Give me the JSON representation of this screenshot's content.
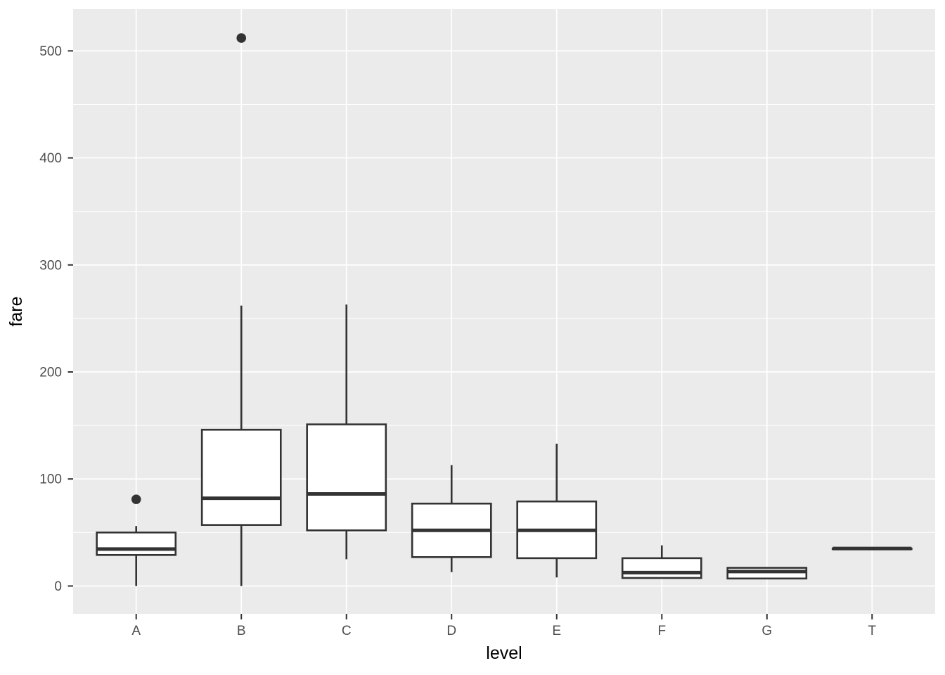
{
  "chart_data": {
    "type": "boxplot",
    "title": "",
    "xlabel": "level",
    "ylabel": "fare",
    "categories": [
      "A",
      "B",
      "C",
      "D",
      "E",
      "F",
      "G",
      "T"
    ],
    "y_ticks": [
      0,
      100,
      200,
      300,
      400,
      500
    ],
    "y_minor_ticks": [
      50,
      150,
      250,
      350,
      450
    ],
    "ylim": [
      -26,
      539
    ],
    "grid": "major-and-minor-horizontal, major-vertical-per-category",
    "legend_position": "none",
    "series": [
      {
        "category": "A",
        "whisker_low": 0,
        "q1": 29,
        "median": 34.5,
        "q3": 50,
        "whisker_high": 56,
        "outliers": [
          81
        ]
      },
      {
        "category": "B",
        "whisker_low": 0,
        "q1": 57,
        "median": 82,
        "q3": 146,
        "whisker_high": 262,
        "outliers": [
          512
        ]
      },
      {
        "category": "C",
        "whisker_low": 25,
        "q1": 52,
        "median": 86,
        "q3": 151,
        "whisker_high": 263,
        "outliers": []
      },
      {
        "category": "D",
        "whisker_low": 13,
        "q1": 27,
        "median": 52,
        "q3": 77,
        "whisker_high": 113,
        "outliers": []
      },
      {
        "category": "E",
        "whisker_low": 8,
        "q1": 26,
        "median": 52,
        "q3": 79,
        "whisker_high": 133,
        "outliers": []
      },
      {
        "category": "F",
        "whisker_low": 7,
        "q1": 7.5,
        "median": 12.5,
        "q3": 26,
        "whisker_high": 38,
        "outliers": []
      },
      {
        "category": "G",
        "whisker_low": 7,
        "q1": 7,
        "median": 13.5,
        "q3": 17,
        "whisker_high": 17,
        "outliers": []
      },
      {
        "category": "T",
        "whisker_low": 35,
        "q1": 35,
        "median": 35,
        "q3": 35,
        "whisker_high": 35,
        "outliers": []
      }
    ],
    "colors": {
      "panel_bg": "#ebebeb",
      "grid": "#ffffff",
      "box_stroke": "#333333",
      "box_fill": "#ffffff",
      "outlier": "#333333",
      "tick_mark": "#333333",
      "axis_text": "#4d4d4d",
      "axis_title": "#000000",
      "figure_bg": "#ffffff"
    }
  }
}
